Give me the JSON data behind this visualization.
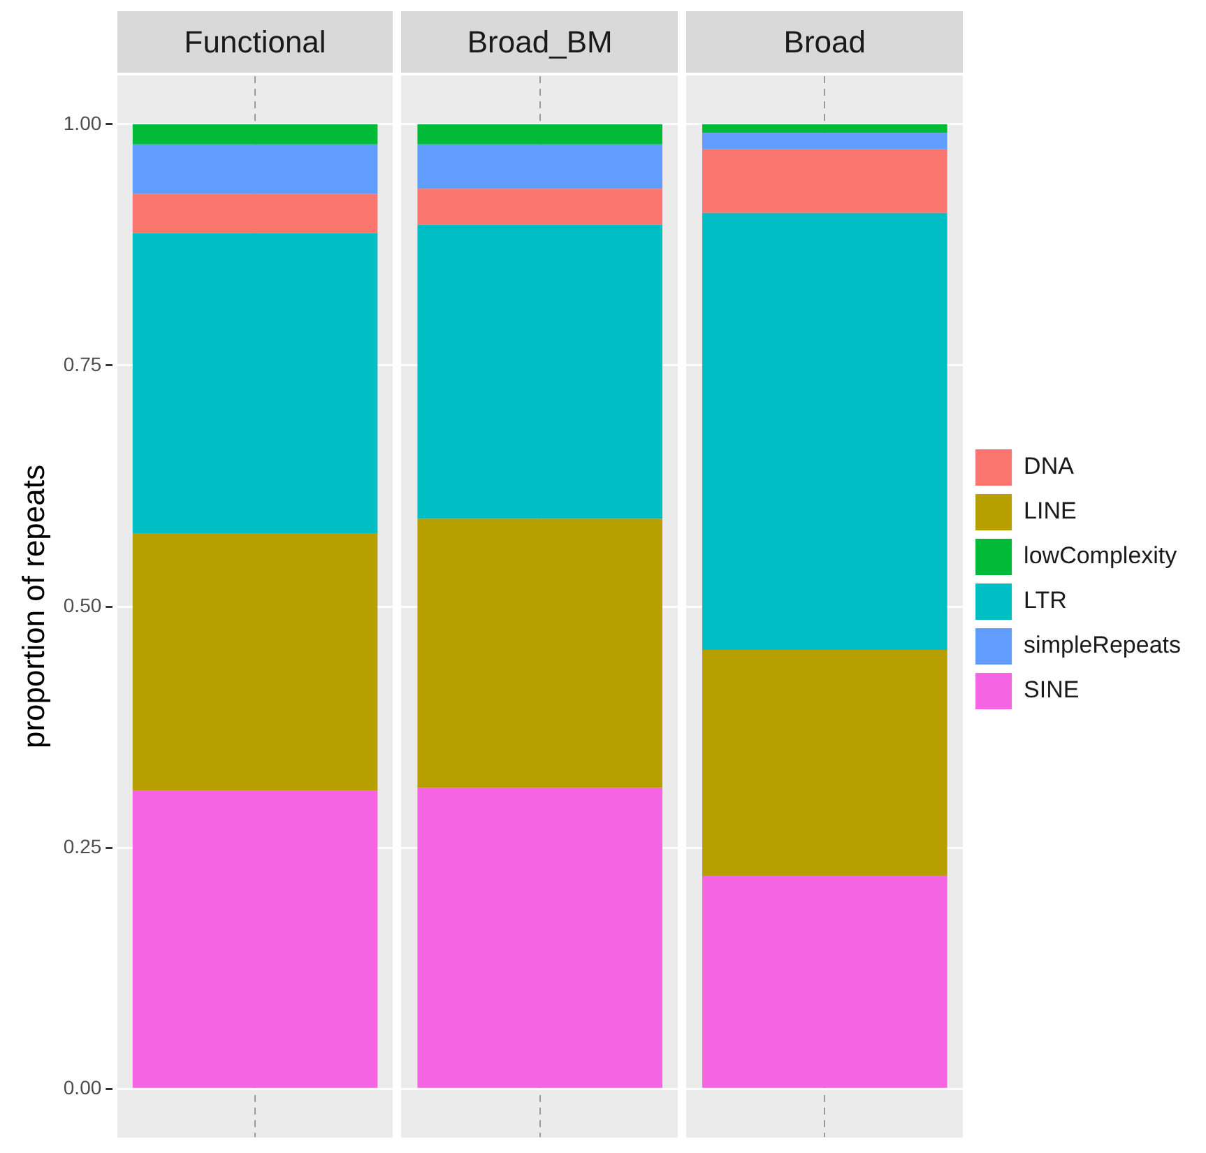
{
  "chart_data": {
    "type": "bar",
    "ylabel": "proportion of repeats",
    "categories": [
      "Functional",
      "Broad_BM",
      "Broad"
    ],
    "stacked": true,
    "grid": true,
    "legend": "right",
    "ylim": [
      -0.05,
      1.05
    ],
    "yticks": [
      {
        "value": 0,
        "label": "0.00"
      },
      {
        "value": 0.25,
        "label": "0.25"
      },
      {
        "value": 0.5,
        "label": "0.50"
      },
      {
        "value": 0.75,
        "label": "0.75"
      },
      {
        "value": 1,
        "label": "1.00"
      }
    ],
    "series": [
      {
        "name": "SINE",
        "color": "#f564e3",
        "values": [
          0.309,
          0.312,
          0.221
        ]
      },
      {
        "name": "LINE",
        "color": "#b79f00",
        "values": [
          0.267,
          0.279,
          0.234
        ]
      },
      {
        "name": "LTR",
        "color": "#00bfc4",
        "values": [
          0.311,
          0.305,
          0.453
        ]
      },
      {
        "name": "DNA",
        "color": "#f8766d",
        "values": [
          0.041,
          0.037,
          0.066
        ]
      },
      {
        "name": "simpleRepeats",
        "color": "#619cff",
        "values": [
          0.051,
          0.046,
          0.017
        ]
      },
      {
        "name": "lowComplexity",
        "color": "#00ba38",
        "values": [
          0.021,
          0.021,
          0.009
        ]
      }
    ]
  }
}
